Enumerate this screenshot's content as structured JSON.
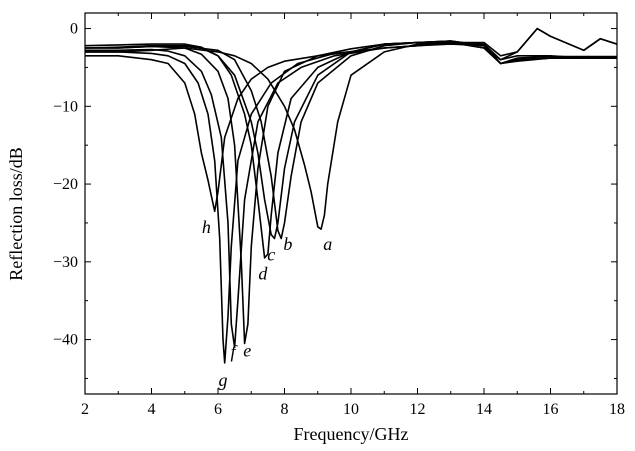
{
  "chart_data": {
    "type": "line",
    "title": "",
    "xlabel": "Frequency/GHz",
    "ylabel": "Reflection loss/dB",
    "xlim": [
      2,
      18
    ],
    "ylim": [
      -47,
      2
    ],
    "x_ticks": [
      2,
      4,
      6,
      8,
      10,
      12,
      14,
      16,
      18
    ],
    "y_ticks": [
      0,
      -10,
      -20,
      -30,
      -40
    ],
    "x_tick_labels": [
      "2",
      "4",
      "6",
      "8",
      "10",
      "12",
      "14",
      "16",
      "18"
    ],
    "y_tick_labels": [
      "0",
      "−10",
      "−20",
      "−30",
      "−40"
    ],
    "grid": false,
    "legend": "none",
    "series": [
      {
        "name": "a",
        "x": [
          2,
          3,
          4,
          5,
          6,
          6.5,
          7,
          7.5,
          8,
          8.3,
          8.6,
          8.8,
          9.0,
          9.1,
          9.2,
          9.3,
          9.6,
          10,
          11,
          12,
          13,
          14,
          14.5,
          15,
          16,
          17,
          18
        ],
        "y": [
          -3,
          -3,
          -2.8,
          -2.5,
          -3,
          -3.5,
          -4.5,
          -6.5,
          -10,
          -13,
          -17.5,
          -21,
          -25.5,
          -25.8,
          -24,
          -20,
          -12,
          -6,
          -3,
          -2,
          -1.8,
          -2.5,
          -4,
          -3.5,
          -3.5,
          -3.8,
          -3.8
        ]
      },
      {
        "name": "b",
        "x": [
          2,
          3,
          4,
          5,
          6,
          6.5,
          7,
          7.3,
          7.6,
          7.8,
          7.9,
          8.0,
          8.2,
          8.5,
          9,
          10,
          11,
          12,
          13,
          14,
          14.5,
          15,
          16,
          17,
          18
        ],
        "y": [
          -2.5,
          -2.5,
          -2.3,
          -2.3,
          -2.8,
          -4,
          -8,
          -12,
          -19,
          -26,
          -27,
          -25,
          -19,
          -12,
          -7,
          -3.5,
          -2.2,
          -1.8,
          -1.6,
          -2.2,
          -4.5,
          -4,
          -3.8,
          -3.8,
          -3.8
        ]
      },
      {
        "name": "c",
        "x": [
          2,
          3,
          4,
          5,
          5.5,
          6,
          6.5,
          7,
          7.2,
          7.4,
          7.6,
          7.7,
          7.8,
          8,
          8.3,
          9,
          10,
          11,
          12,
          13,
          14,
          14.5,
          15,
          16,
          17,
          18
        ],
        "y": [
          -2.5,
          -2.4,
          -2.2,
          -2.2,
          -2.5,
          -3.5,
          -6,
          -12,
          -16,
          -22,
          -26.5,
          -27,
          -25,
          -18,
          -12,
          -6,
          -3,
          -2,
          -1.8,
          -1.6,
          -2.2,
          -4.5,
          -4,
          -3.8,
          -3.8,
          -3.8
        ]
      },
      {
        "name": "d",
        "x": [
          2,
          3,
          4,
          5,
          5.5,
          6,
          6.4,
          6.8,
          7.0,
          7.2,
          7.4,
          7.5,
          7.6,
          7.8,
          8.2,
          9,
          10,
          11,
          12,
          13,
          14,
          14.5,
          15,
          16,
          17,
          18
        ],
        "y": [
          -2.2,
          -2.1,
          -2,
          -2,
          -2.4,
          -3.5,
          -6,
          -11,
          -15,
          -22,
          -29.5,
          -29,
          -24,
          -16,
          -9,
          -5,
          -3,
          -2,
          -1.8,
          -1.6,
          -2.2,
          -4.5,
          -4,
          -3.8,
          -3.8,
          -3.8
        ]
      },
      {
        "name": "e",
        "x": [
          2,
          3,
          4,
          5,
          5.5,
          6,
          6.3,
          6.5,
          6.7,
          6.8,
          6.9,
          7.0,
          7.2,
          7.5,
          8,
          9,
          10,
          11,
          12,
          13,
          14,
          14.5,
          15,
          16,
          17,
          18
        ],
        "y": [
          -2.5,
          -2.5,
          -2.3,
          -2.5,
          -3.3,
          -5.5,
          -9,
          -15,
          -30,
          -40.5,
          -38,
          -28,
          -18,
          -10,
          -5.5,
          -3.5,
          -2.6,
          -2,
          -1.8,
          -1.8,
          -2.5,
          -4.5,
          -4.2,
          -3.8,
          -3.8,
          -3.8
        ]
      },
      {
        "name": "f",
        "x": [
          2,
          3,
          4,
          4.5,
          5,
          5.5,
          5.8,
          6.1,
          6.3,
          6.4,
          6.5,
          6.6,
          6.8,
          7.2,
          7.8,
          8.5,
          9.5,
          11,
          12,
          13,
          14,
          14.5,
          15,
          15.6,
          16,
          17,
          17.5,
          18
        ],
        "y": [
          -2.8,
          -2.8,
          -2.7,
          -2.9,
          -3.5,
          -5.5,
          -8.5,
          -14,
          -25,
          -38,
          -41,
          -35,
          -22,
          -12,
          -7,
          -5,
          -3.5,
          -2.5,
          -2.2,
          -1.8,
          -2,
          -4,
          -3,
          0,
          -1,
          -2.8,
          -1.3,
          -2
        ]
      },
      {
        "name": "g",
        "x": [
          2,
          3,
          4,
          4.5,
          5,
          5.4,
          5.7,
          5.9,
          6.05,
          6.15,
          6.2,
          6.3,
          6.4,
          6.6,
          7,
          7.6,
          8.4,
          9.5,
          11,
          12,
          13,
          14,
          14.5,
          15,
          15.6,
          16,
          17,
          17.5,
          18
        ],
        "y": [
          -3,
          -3,
          -3.2,
          -3.5,
          -4.5,
          -7,
          -11,
          -17,
          -27,
          -40,
          -43,
          -37,
          -28,
          -17,
          -11,
          -7,
          -4.5,
          -3.2,
          -2.5,
          -2.2,
          -1.8,
          -1.8,
          -3.5,
          -3,
          0,
          -1,
          -2.8,
          -1.3,
          -2
        ]
      },
      {
        "name": "h",
        "x": [
          2,
          3,
          4,
          4.5,
          5,
          5.3,
          5.5,
          5.7,
          5.8,
          5.9,
          6.0,
          6.2,
          6.6,
          7,
          7.5,
          8,
          9,
          10,
          11,
          12,
          13,
          14,
          14.5,
          15,
          16,
          17,
          18
        ],
        "y": [
          -3.5,
          -3.5,
          -4,
          -4.5,
          -7,
          -11,
          -16,
          -19.5,
          -21.5,
          -23.5,
          -21,
          -14,
          -9,
          -6.5,
          -5,
          -4.2,
          -3.5,
          -3,
          -2.5,
          -2.2,
          -2,
          -2.2,
          -4.5,
          -3.8,
          -3.6,
          -3.6,
          -3.6
        ]
      }
    ],
    "annotations": [
      {
        "text": "a",
        "x": 9.3,
        "y": -28.5
      },
      {
        "text": "b",
        "x": 8.1,
        "y": -28.5
      },
      {
        "text": "c",
        "x": 7.6,
        "y": -29.8
      },
      {
        "text": "d",
        "x": 7.35,
        "y": -32.3
      },
      {
        "text": "e",
        "x": 6.88,
        "y": -42.2
      },
      {
        "text": "f",
        "x": 6.45,
        "y": -42.3
      },
      {
        "text": "g",
        "x": 6.15,
        "y": -46
      },
      {
        "text": "h",
        "x": 5.65,
        "y": -26.3
      }
    ]
  }
}
